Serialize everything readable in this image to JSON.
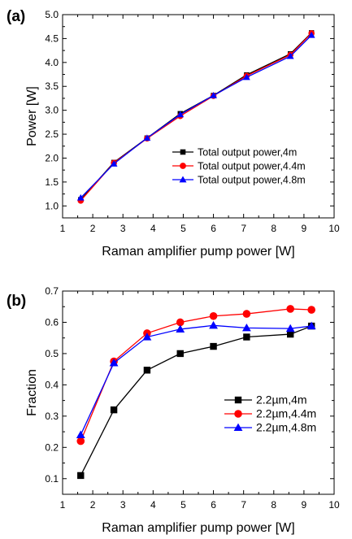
{
  "chart_data": [
    {
      "panel_label": "(a)",
      "type": "line",
      "xlabel": "Raman amplifier pump power [W]",
      "ylabel": "Power [W]",
      "xlim": [
        1,
        10
      ],
      "ylim": [
        0.75,
        5.0
      ],
      "xticks": [
        "1",
        "2",
        "3",
        "4",
        "5",
        "6",
        "7",
        "8",
        "9",
        "10"
      ],
      "yticks": [
        "1.0",
        "1.5",
        "2.0",
        "2.5",
        "3.0",
        "3.5",
        "4.0",
        "4.5",
        "5.0"
      ],
      "grid": false,
      "legend_position": "center-right",
      "series": [
        {
          "name": "Total output power,4m",
          "color": "#000000",
          "marker": "square",
          "x": [
            1.6,
            2.7,
            3.8,
            4.9,
            6.0,
            7.1,
            8.55,
            9.25
          ],
          "y": [
            1.13,
            1.91,
            2.42,
            2.93,
            3.31,
            3.74,
            4.18,
            4.62
          ]
        },
        {
          "name": "Total output power,4.4m",
          "color": "#ff0000",
          "marker": "circle",
          "x": [
            1.6,
            2.7,
            3.8,
            4.9,
            6.0,
            7.1,
            8.55,
            9.25
          ],
          "y": [
            1.11,
            1.9,
            2.41,
            2.88,
            3.3,
            3.72,
            4.16,
            4.61
          ]
        },
        {
          "name": "Total output power,4.8m",
          "color": "#0000ff",
          "marker": "triangle",
          "x": [
            1.6,
            2.7,
            3.8,
            4.9,
            6.0,
            7.1,
            8.55,
            9.25
          ],
          "y": [
            1.17,
            1.88,
            2.42,
            2.91,
            3.31,
            3.69,
            4.13,
            4.57
          ]
        }
      ]
    },
    {
      "panel_label": "(b)",
      "type": "line",
      "xlabel": "Raman amplifier pump power [W]",
      "ylabel": "Fraction",
      "xlim": [
        1,
        10
      ],
      "ylim": [
        0.05,
        0.7
      ],
      "xticks": [
        "1",
        "2",
        "3",
        "4",
        "5",
        "6",
        "7",
        "8",
        "9",
        "10"
      ],
      "yticks": [
        "0.1",
        "0.2",
        "0.3",
        "0.4",
        "0.5",
        "0.6",
        "0.7"
      ],
      "grid": false,
      "legend_position": "center-right",
      "series": [
        {
          "name": "2.2µm,4m",
          "color": "#000000",
          "marker": "square",
          "x": [
            1.6,
            2.7,
            3.8,
            4.9,
            6.0,
            7.1,
            8.55,
            9.25
          ],
          "y": [
            0.11,
            0.32,
            0.447,
            0.5,
            0.523,
            0.553,
            0.562,
            0.588
          ]
        },
        {
          "name": "2.2µm,4.4m",
          "color": "#ff0000",
          "marker": "circle",
          "x": [
            1.6,
            2.7,
            3.8,
            4.9,
            6.0,
            7.1,
            8.55,
            9.25
          ],
          "y": [
            0.22,
            0.475,
            0.565,
            0.6,
            0.62,
            0.627,
            0.643,
            0.64
          ]
        },
        {
          "name": "2.2µm,4.8m",
          "color": "#0000ff",
          "marker": "triangle",
          "x": [
            1.6,
            2.7,
            3.8,
            4.9,
            6.0,
            7.1,
            8.55,
            9.25
          ],
          "y": [
            0.24,
            0.47,
            0.553,
            0.578,
            0.59,
            0.582,
            0.58,
            0.588
          ]
        }
      ]
    }
  ]
}
